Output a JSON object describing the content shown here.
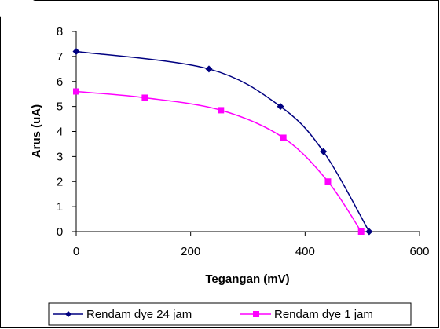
{
  "chart_data": {
    "type": "line",
    "xlabel": "Tegangan (mV)",
    "ylabel": "Arus (uA)",
    "xlim": [
      0,
      600
    ],
    "ylim": [
      0,
      8
    ],
    "xticks": [
      "0",
      "200",
      "400",
      "600"
    ],
    "yticks": [
      "0",
      "1",
      "2",
      "3",
      "4",
      "5",
      "6",
      "7",
      "8"
    ],
    "grid": false,
    "legend_position": "bottom",
    "series": [
      {
        "name": "Rendam dye 24 jam",
        "color": "#000080",
        "marker": "diamond",
        "x": [
          0,
          232,
          357,
          432,
          512
        ],
        "y": [
          7.2,
          6.5,
          5.0,
          3.2,
          0
        ]
      },
      {
        "name": "Rendam dye 1 jam",
        "color": "#ff00ff",
        "marker": "square",
        "x": [
          0,
          120,
          253,
          362,
          440,
          498
        ],
        "y": [
          5.6,
          5.35,
          4.85,
          3.75,
          2.0,
          0
        ]
      }
    ]
  }
}
